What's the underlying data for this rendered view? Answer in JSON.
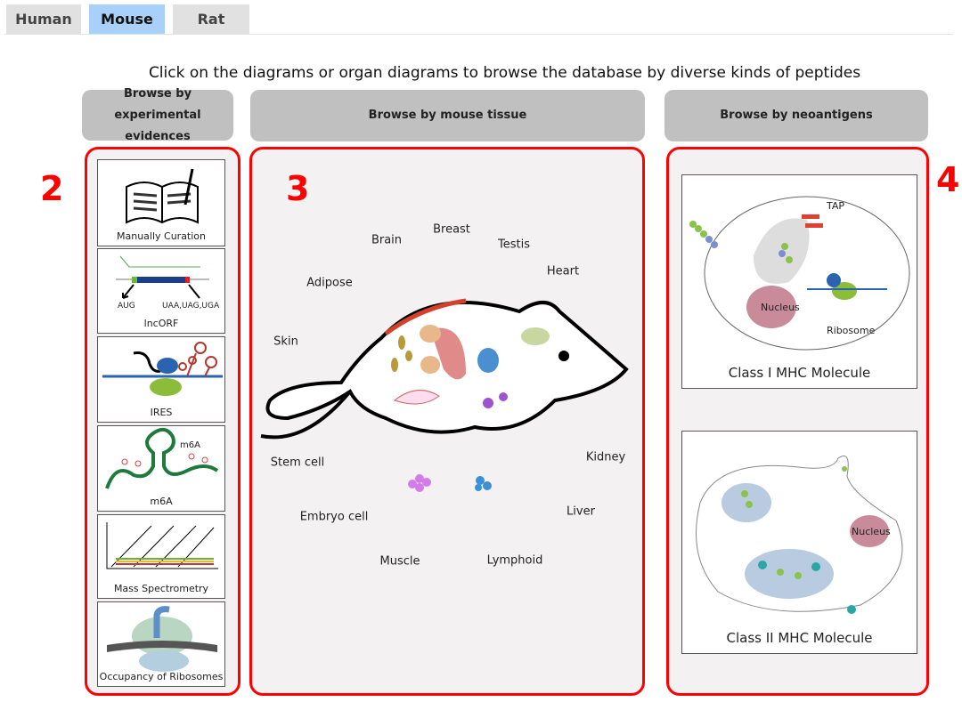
{
  "tabs": [
    {
      "label": "Human"
    },
    {
      "label": "Mouse",
      "active": true
    },
    {
      "label": "Rat"
    }
  ],
  "instruction": "Click on the diagrams or organ diagrams to browse the database by diverse kinds of peptides",
  "headers": {
    "evidence_l1": "Browse by",
    "evidence_l2": "experimental evidences",
    "tissue": "Browse by mouse tissue",
    "neoantigen": "Browse by neoantigens"
  },
  "section_numbers": [
    "2",
    "3",
    "4"
  ],
  "evidence_items": [
    {
      "label": "Manually Curation"
    },
    {
      "label": "lncORF",
      "start": "AUG",
      "stop": "UAA,UAG,UGA"
    },
    {
      "label": "IRES"
    },
    {
      "label": "m6A",
      "mark": "m6A"
    },
    {
      "label": "Mass Spectrometry"
    },
    {
      "label": "Occupancy of Ribosomes"
    }
  ],
  "tissues": [
    "Brain",
    "Breast",
    "Testis",
    "Heart",
    "Adipose",
    "Skin",
    "Stem cell",
    "Embryo cell",
    "Muscle",
    "Lymphoid",
    "Liver",
    "Kidney"
  ],
  "neoantigen_cards": [
    {
      "label": "Class I MHC Molecule",
      "parts": {
        "tap": "TAP",
        "nucleus": "Nucleus",
        "ribosome": "Ribosome"
      }
    },
    {
      "label": "Class II MHC Molecule",
      "parts": {
        "nucleus": "Nucleus"
      }
    }
  ],
  "colors": {
    "active_tab": "#a8d0f8",
    "frame": "#ff0000",
    "header": "#c0c0c0"
  }
}
